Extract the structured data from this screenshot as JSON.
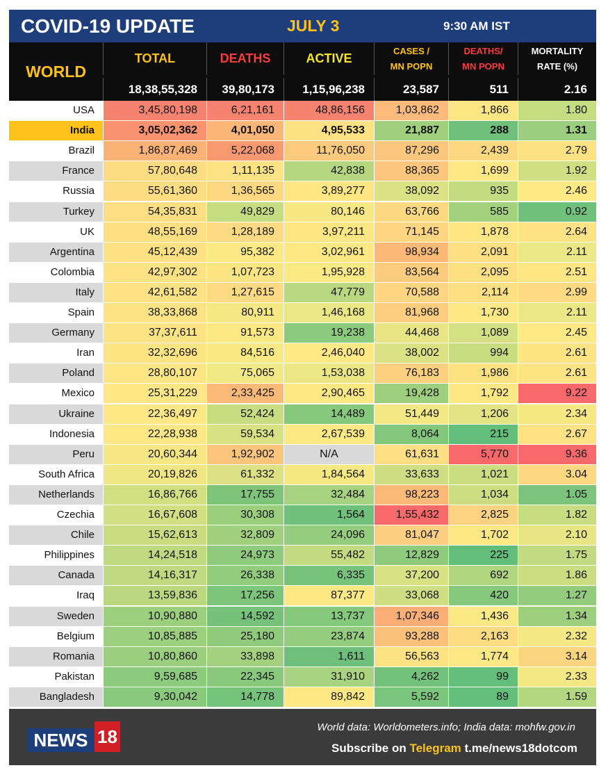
{
  "header": {
    "title": "COVID-19 UPDATE",
    "date": "JULY 3",
    "time": "9:30 AM IST",
    "region_label": "WORLD"
  },
  "columns": [
    {
      "key": "total",
      "line1": "TOTAL",
      "line2": "",
      "color": "#ffc21a"
    },
    {
      "key": "deaths",
      "line1": "DEATHS",
      "line2": "",
      "color": "#ff3b3b"
    },
    {
      "key": "active",
      "line1": "ACTIVE",
      "line2": "",
      "color": "#f5e72a"
    },
    {
      "key": "cases_mn",
      "line1": "CASES /",
      "line2": "MN POPN",
      "color": "#ffc21a"
    },
    {
      "key": "deaths_mn",
      "line1": "DEATHS/",
      "line2": "MN POPN",
      "color": "#ff3b3b"
    },
    {
      "key": "mortality",
      "line1": "MORTALITY",
      "line2": "RATE (%)",
      "color": "#ffffff"
    }
  ],
  "world_totals": [
    "18,38,55,328",
    "39,80,173",
    "1,15,96,238",
    "23,587",
    "511",
    "2.16"
  ],
  "colors": {
    "title_bg": "#1d3e7a",
    "header_bg": "#0d0d0d",
    "accent_yellow": "#ffc21a",
    "footer_bg": "#3b3b3b",
    "india_highlight": "#ffc21a"
  },
  "chart_data": {
    "type": "table",
    "title": "COVID-19 UPDATE",
    "columns": [
      "TOTAL",
      "DEATHS",
      "ACTIVE",
      "CASES / MN POPN",
      "DEATHS/ MN POPN",
      "MORTALITY RATE (%)"
    ],
    "rows": [
      {
        "country": "USA",
        "values": [
          "3,45,80,198",
          "6,21,161",
          "48,86,156",
          "1,03,862",
          "1,866",
          "1.80"
        ],
        "colors": [
          "#f6836f",
          "#f6836f",
          "#f6836f",
          "#fcbb7a",
          "#fce784",
          "#c5dd80"
        ]
      },
      {
        "country": "India",
        "values": [
          "3,05,02,362",
          "4,01,050",
          "4,95,533",
          "21,887",
          "288",
          "1.31"
        ],
        "colors": [
          "#f8926f",
          "#fbb678",
          "#fde283",
          "#a0d07d",
          "#6fc07b",
          "#9bce7f"
        ]
      },
      {
        "country": "Brazil",
        "values": [
          "1,86,87,469",
          "5,22,068",
          "11,76,050",
          "87,296",
          "2,439",
          "2.79"
        ],
        "colors": [
          "#fbb276",
          "#f8996f",
          "#fdcb7e",
          "#fcc77d",
          "#fed981",
          "#fee183"
        ]
      },
      {
        "country": "France",
        "values": [
          "57,80,648",
          "1,11,135",
          "42,838",
          "88,365",
          "1,699",
          "1.92"
        ],
        "colors": [
          "#fedd82",
          "#fee283",
          "#b6d780",
          "#fcc67c",
          "#fee785",
          "#d0df82"
        ]
      },
      {
        "country": "Russia",
        "values": [
          "55,61,360",
          "1,36,565",
          "3,89,277",
          "38,092",
          "935",
          "2.46"
        ],
        "colors": [
          "#fedd82",
          "#fed981",
          "#fee683",
          "#dbe283",
          "#c3db81",
          "#fee984"
        ]
      },
      {
        "country": "Turkey",
        "values": [
          "54,35,831",
          "49,829",
          "80,146",
          "63,766",
          "585",
          "0.92"
        ],
        "colors": [
          "#fede82",
          "#c5dc81",
          "#f7e884",
          "#fed981",
          "#a4d17e",
          "#6fc07b"
        ]
      },
      {
        "country": "UK",
        "values": [
          "48,55,169",
          "1,28,189",
          "3,97,211",
          "71,145",
          "1,878",
          "2.64"
        ],
        "colors": [
          "#fee083",
          "#fedb82",
          "#fee683",
          "#fed581",
          "#fee684",
          "#fee283"
        ]
      },
      {
        "country": "Argentina",
        "values": [
          "45,12,439",
          "95,382",
          "3,02,961",
          "98,934",
          "2,091",
          "2.11"
        ],
        "colors": [
          "#fee183",
          "#fde984",
          "#fee884",
          "#fbb977",
          "#fee082",
          "#ebe784"
        ]
      },
      {
        "country": "Colombia",
        "values": [
          "42,97,302",
          "1,07,723",
          "1,95,928",
          "83,564",
          "2,095",
          "2.51"
        ],
        "colors": [
          "#fee283",
          "#fee583",
          "#fae985",
          "#fccc7e",
          "#fedf82",
          "#fee684"
        ]
      },
      {
        "country": "Italy",
        "values": [
          "42,61,582",
          "1,27,615",
          "47,779",
          "70,588",
          "2,114",
          "2.99"
        ],
        "colors": [
          "#fee283",
          "#fedb82",
          "#bad880",
          "#fed581",
          "#fedf82",
          "#fedb82"
        ]
      },
      {
        "country": "Spain",
        "values": [
          "38,33,868",
          "80,911",
          "1,46,168",
          "81,968",
          "1,730",
          "2.11"
        ],
        "colors": [
          "#fee384",
          "#f6e985",
          "#eae784",
          "#fccd7f",
          "#fee785",
          "#ebe784"
        ]
      },
      {
        "country": "Germany",
        "values": [
          "37,37,611",
          "91,573",
          "19,238",
          "44,468",
          "1,089",
          "2.45"
        ],
        "colors": [
          "#fee384",
          "#fce984",
          "#8ccb7d",
          "#e7e584",
          "#d5e082",
          "#fee984"
        ]
      },
      {
        "country": "Iran",
        "values": [
          "32,32,696",
          "84,516",
          "2,46,040",
          "38,002",
          "994",
          "2.61"
        ],
        "colors": [
          "#fee584",
          "#f8e985",
          "#fee984",
          "#dbe283",
          "#c8dc81",
          "#fee483"
        ]
      },
      {
        "country": "Poland",
        "values": [
          "28,80,107",
          "75,065",
          "1,53,038",
          "76,183",
          "1,986",
          "2.61"
        ],
        "colors": [
          "#fee684",
          "#f2e885",
          "#ebe784",
          "#fdd080",
          "#fee282",
          "#fee483"
        ]
      },
      {
        "country": "Mexico",
        "values": [
          "25,31,229",
          "2,33,425",
          "2,90,465",
          "19,428",
          "1,792",
          "9.22"
        ],
        "colors": [
          "#fee784",
          "#fbba77",
          "#fee884",
          "#9ecf7e",
          "#fee785",
          "#f8696b"
        ]
      },
      {
        "country": "Ukraine",
        "values": [
          "22,36,497",
          "52,424",
          "14,489",
          "51,449",
          "1,206",
          "2.34"
        ],
        "colors": [
          "#fde885",
          "#c8dd81",
          "#85c97c",
          "#f4e885",
          "#e5e484",
          "#f6e984"
        ]
      },
      {
        "country": "Indonesia",
        "values": [
          "22,28,938",
          "59,534",
          "2,67,539",
          "8,064",
          "215",
          "2.67"
        ],
        "colors": [
          "#fde885",
          "#d9e283",
          "#fde984",
          "#83c77c",
          "#63be7b",
          "#fee283"
        ]
      },
      {
        "country": "Peru",
        "values": [
          "20,60,344",
          "1,92,902",
          "N/A",
          "61,631",
          "5,770",
          "9.36"
        ],
        "colors": [
          "#f6e784",
          "#fcc57b",
          "#d9d9d9",
          "#fede82",
          "#f8696b",
          "#f8696b"
        ]
      },
      {
        "country": "South Africa",
        "values": [
          "20,19,826",
          "61,332",
          "1,84,564",
          "33,633",
          "1,021",
          "3.04"
        ],
        "colors": [
          "#f0e684",
          "#dce283",
          "#f6e984",
          "#cfde82",
          "#cbdd81",
          "#fed981"
        ]
      },
      {
        "country": "Netherlands",
        "values": [
          "16,86,766",
          "17,755",
          "32,484",
          "98,223",
          "1,034",
          "1.05"
        ],
        "colors": [
          "#d3e082",
          "#7ec57b",
          "#a7d27f",
          "#fbba77",
          "#cddd81",
          "#7cc47c"
        ]
      },
      {
        "country": "Czechia",
        "values": [
          "16,67,608",
          "30,308",
          "1,564",
          "1,55,432",
          "2,825",
          "1.82"
        ],
        "colors": [
          "#d2df82",
          "#9bcf7e",
          "#6fc07b",
          "#f8696b",
          "#fed381",
          "#c8dc81"
        ]
      },
      {
        "country": "Chile",
        "values": [
          "15,62,613",
          "32,809",
          "24,096",
          "81,047",
          "1,702",
          "2.10"
        ],
        "colors": [
          "#c9dc81",
          "#a1d07e",
          "#95cd7e",
          "#fcce7f",
          "#fee785",
          "#e8e683"
        ]
      },
      {
        "country": "Philippines",
        "values": [
          "14,24,518",
          "24,973",
          "55,482",
          "12,829",
          "225",
          "1.75"
        ],
        "colors": [
          "#bfda80",
          "#8fcb7d",
          "#c4da81",
          "#8ecb7d",
          "#64be7b",
          "#c2da81"
        ]
      },
      {
        "country": "Canada",
        "values": [
          "14,16,317",
          "26,338",
          "6,335",
          "37,200",
          "692",
          "1.86"
        ],
        "colors": [
          "#bfda80",
          "#92cc7d",
          "#78c37c",
          "#d8e283",
          "#afd57f",
          "#cade81"
        ]
      },
      {
        "country": "Iraq",
        "values": [
          "13,59,836",
          "17,256",
          "87,377",
          "33,068",
          "420",
          "1.27"
        ],
        "colors": [
          "#bbd880",
          "#7cc57b",
          "#fee884",
          "#cfde82",
          "#86c87c",
          "#94cc7d"
        ]
      },
      {
        "country": "Sweden",
        "values": [
          "10,90,880",
          "14,592",
          "13,737",
          "1,07,346",
          "1,436",
          "1.34"
        ],
        "colors": [
          "#9ccf7e",
          "#76c27b",
          "#85c97c",
          "#fbae75",
          "#fbe985",
          "#9dcf7e"
        ]
      },
      {
        "country": "Belgium",
        "values": [
          "10,85,885",
          "25,180",
          "23,874",
          "93,288",
          "2,163",
          "2.32"
        ],
        "colors": [
          "#9ccf7e",
          "#90cb7d",
          "#94cd7d",
          "#fbc07a",
          "#fedd82",
          "#f4e884"
        ]
      },
      {
        "country": "Romania",
        "values": [
          "10,80,860",
          "33,898",
          "1,611",
          "56,563",
          "1,774",
          "3.14"
        ],
        "colors": [
          "#9bce7e",
          "#a4d17f",
          "#6dbf7b",
          "#fde283",
          "#fee785",
          "#fcd580"
        ]
      },
      {
        "country": "Pakistan",
        "values": [
          "9,59,685",
          "22,345",
          "31,910",
          "4,262",
          "99",
          "2.33"
        ],
        "colors": [
          "#8ccb7d",
          "#89c97c",
          "#a8d47f",
          "#72c27b",
          "#63be7b",
          "#f4e884"
        ]
      },
      {
        "country": "Bangladesh",
        "values": [
          "9,30,042",
          "14,778",
          "89,842",
          "5,592",
          "89",
          "1.59"
        ],
        "colors": [
          "#8aca7d",
          "#76c37c",
          "#fee884",
          "#7ac47c",
          "#63be7b",
          "#b3d680"
        ]
      }
    ],
    "highlight_row": "India"
  },
  "footer": {
    "logo_news": "NEWS",
    "logo_num": "18",
    "credit": "World data: Worldometers.info; India data: mohfw.gov.in",
    "subscribe_prefix": "Subscribe on ",
    "subscribe_platform": "Telegram",
    "subscribe_link": " t.me/news18dotcom"
  }
}
